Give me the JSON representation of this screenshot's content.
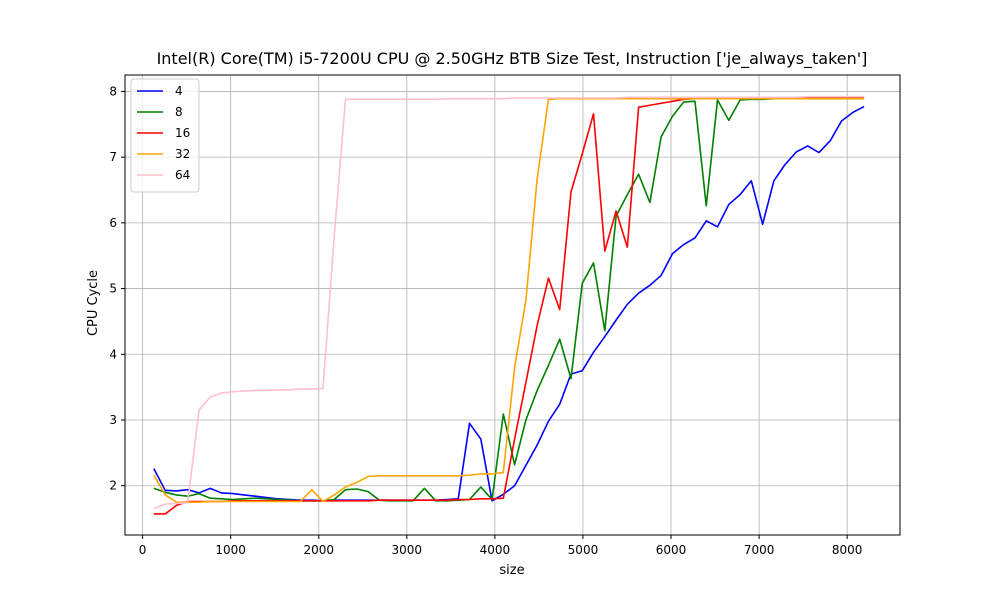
{
  "chart_data": {
    "type": "line",
    "title": "Intel(R) Core(TM) i5-7200U CPU @ 2.50GHz BTB Size Test, Instruction ['je_always_taken']",
    "xlabel": "size",
    "ylabel": "CPU Cycle",
    "xlim": [
      -200,
      8600
    ],
    "ylim": [
      1.25,
      8.25
    ],
    "xticks": [
      0,
      1000,
      2000,
      3000,
      4000,
      5000,
      6000,
      7000,
      8000
    ],
    "yticks": [
      2,
      3,
      4,
      5,
      6,
      7,
      8
    ],
    "grid": true,
    "legend_position": "upper left",
    "x": [
      128,
      256,
      384,
      512,
      640,
      768,
      896,
      1024,
      1152,
      1280,
      1408,
      1536,
      1664,
      1792,
      1920,
      2048,
      2176,
      2304,
      2432,
      2560,
      2688,
      2816,
      2944,
      3072,
      3200,
      3328,
      3456,
      3584,
      3712,
      3840,
      3968,
      4096,
      4224,
      4352,
      4480,
      4608,
      4736,
      4864,
      4992,
      5120,
      5248,
      5376,
      5504,
      5632,
      5760,
      5888,
      6016,
      6144,
      6272,
      6400,
      6528,
      6656,
      6784,
      6912,
      7040,
      7168,
      7296,
      7424,
      7552,
      7680,
      7808,
      7936,
      8064,
      8192
    ],
    "series": [
      {
        "name": "4",
        "color": "#0000ff",
        "values": [
          2.26,
          1.93,
          1.92,
          1.94,
          1.89,
          1.96,
          1.89,
          1.88,
          1.86,
          1.84,
          1.82,
          1.8,
          1.79,
          1.78,
          1.78,
          1.77,
          1.78,
          1.78,
          1.78,
          1.78,
          1.78,
          1.78,
          1.78,
          1.78,
          1.78,
          1.78,
          1.79,
          1.8,
          2.95,
          2.71,
          1.77,
          1.87,
          2.0,
          2.31,
          2.62,
          2.98,
          3.24,
          3.7,
          3.75,
          4.03,
          4.27,
          4.52,
          4.76,
          4.93,
          5.05,
          5.2,
          5.53,
          5.67,
          5.77,
          6.03,
          5.94,
          6.28,
          6.43,
          6.64,
          5.98,
          6.64,
          6.89,
          7.08,
          7.17,
          7.07,
          7.25,
          7.55,
          7.68,
          7.77
        ]
      },
      {
        "name": "8",
        "color": "#008000",
        "values": [
          1.96,
          1.9,
          1.86,
          1.84,
          1.88,
          1.81,
          1.8,
          1.79,
          1.8,
          1.81,
          1.8,
          1.79,
          1.78,
          1.77,
          1.77,
          1.77,
          1.79,
          1.94,
          1.95,
          1.91,
          1.78,
          1.77,
          1.77,
          1.77,
          1.96,
          1.77,
          1.77,
          1.78,
          1.79,
          1.98,
          1.79,
          3.09,
          2.32,
          3.0,
          3.45,
          3.83,
          4.23,
          3.63,
          5.08,
          5.39,
          4.36,
          6.1,
          6.43,
          6.74,
          6.31,
          7.31,
          7.62,
          7.84,
          7.85,
          6.26,
          7.87,
          7.56,
          7.87,
          7.88,
          7.88,
          7.89,
          7.89,
          7.89,
          7.89,
          7.89,
          7.89,
          7.9,
          7.9,
          7.9
        ]
      },
      {
        "name": "16",
        "color": "#ff0000",
        "values": [
          1.57,
          1.57,
          1.7,
          1.76,
          1.76,
          1.76,
          1.76,
          1.77,
          1.77,
          1.77,
          1.77,
          1.77,
          1.77,
          1.77,
          1.77,
          1.77,
          1.77,
          1.77,
          1.77,
          1.77,
          1.78,
          1.78,
          1.78,
          1.78,
          1.78,
          1.78,
          1.78,
          1.79,
          1.79,
          1.8,
          1.8,
          1.81,
          2.71,
          3.57,
          4.44,
          5.16,
          4.68,
          6.47,
          7.05,
          7.66,
          5.57,
          6.18,
          5.63,
          7.76,
          7.79,
          7.82,
          7.85,
          7.88,
          7.89,
          7.89,
          7.9,
          7.9,
          7.9,
          7.9,
          7.9,
          7.9,
          7.9,
          7.9,
          7.9,
          7.9,
          7.9,
          7.9,
          7.9,
          7.9
        ]
      },
      {
        "name": "32",
        "color": "#ffa500",
        "values": [
          2.16,
          1.86,
          1.75,
          1.75,
          1.75,
          1.76,
          1.76,
          1.76,
          1.76,
          1.76,
          1.76,
          1.76,
          1.76,
          1.76,
          1.94,
          1.76,
          1.86,
          1.98,
          2.05,
          2.14,
          2.15,
          2.15,
          2.15,
          2.15,
          2.15,
          2.15,
          2.15,
          2.15,
          2.16,
          2.18,
          2.18,
          2.2,
          3.8,
          4.82,
          6.67,
          7.88,
          7.89,
          7.89,
          7.89,
          7.89,
          7.89,
          7.89,
          7.89,
          7.89,
          7.89,
          7.89,
          7.89,
          7.89,
          7.89,
          7.89,
          7.89,
          7.89,
          7.89,
          7.89,
          7.89,
          7.89,
          7.89,
          7.89,
          7.89,
          7.89,
          7.89,
          7.89,
          7.89,
          7.89
        ]
      },
      {
        "name": "64",
        "color": "#ffc0cb",
        "values": [
          1.65,
          1.72,
          1.73,
          1.74,
          3.15,
          3.35,
          3.41,
          3.43,
          3.44,
          3.45,
          3.45,
          3.46,
          3.46,
          3.47,
          3.47,
          3.48,
          5.8,
          7.88,
          7.88,
          7.88,
          7.88,
          7.88,
          7.88,
          7.88,
          7.88,
          7.88,
          7.89,
          7.89,
          7.89,
          7.89,
          7.89,
          7.89,
          7.9,
          7.9,
          7.9,
          7.9,
          7.9,
          7.9,
          7.9,
          7.9,
          7.9,
          7.9,
          7.91,
          7.91,
          7.91,
          7.91,
          7.91,
          7.91,
          7.91,
          7.91,
          7.91,
          7.91,
          7.91,
          7.91,
          7.91,
          7.91,
          7.91,
          7.91,
          7.92,
          7.92,
          7.92,
          7.92,
          7.92,
          7.92
        ]
      }
    ]
  }
}
